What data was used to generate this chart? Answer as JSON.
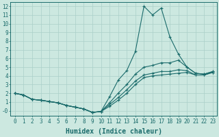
{
  "bg_color": "#cce8e0",
  "line_color": "#1a6b6b",
  "grid_color": "#aacfc8",
  "xlim": [
    -0.5,
    23.5
  ],
  "ylim": [
    -0.6,
    12.5
  ],
  "xticks": [
    0,
    1,
    2,
    3,
    4,
    5,
    6,
    7,
    8,
    9,
    10,
    11,
    12,
    13,
    14,
    15,
    16,
    17,
    18,
    19,
    20,
    21,
    22,
    23
  ],
  "yticks": [
    0,
    1,
    2,
    3,
    4,
    5,
    6,
    7,
    8,
    9,
    10,
    11,
    12
  ],
  "ytick_labels": [
    "-0",
    "1",
    "2",
    "3",
    "4",
    "5",
    "6",
    "7",
    "8",
    "9",
    "10",
    "11",
    "12"
  ],
  "xlabel": "Humidex (Indice chaleur)",
  "tick_fontsize": 5.5,
  "label_fontsize": 7,
  "line1_x": [
    0,
    1,
    2,
    3,
    4,
    5,
    6,
    7,
    8,
    9,
    10,
    11,
    12,
    13,
    14,
    15,
    16,
    17,
    18,
    19,
    20,
    21,
    22,
    23
  ],
  "line1_y": [
    2.0,
    1.8,
    1.3,
    1.2,
    1.05,
    0.9,
    0.6,
    0.4,
    0.2,
    -0.2,
    -0.1,
    1.6,
    3.5,
    4.6,
    6.8,
    12.0,
    11.0,
    11.8,
    8.5,
    6.5,
    5.0,
    4.3,
    4.2,
    4.5
  ],
  "line2_x": [
    0,
    1,
    2,
    3,
    4,
    5,
    6,
    7,
    8,
    9,
    10,
    11,
    12,
    13,
    14,
    15,
    16,
    17,
    18,
    19,
    20,
    21,
    22,
    23
  ],
  "line2_y": [
    2.0,
    1.8,
    1.3,
    1.2,
    1.05,
    0.9,
    0.6,
    0.4,
    0.2,
    -0.2,
    -0.1,
    0.5,
    1.2,
    2.0,
    3.0,
    3.8,
    4.0,
    4.1,
    4.2,
    4.3,
    4.4,
    4.1,
    4.1,
    4.4
  ],
  "line3_x": [
    0,
    1,
    2,
    3,
    4,
    5,
    6,
    7,
    8,
    9,
    10,
    11,
    12,
    13,
    14,
    15,
    16,
    17,
    18,
    19,
    20,
    21,
    22,
    23
  ],
  "line3_y": [
    2.0,
    1.8,
    1.3,
    1.2,
    1.05,
    0.9,
    0.6,
    0.4,
    0.2,
    -0.2,
    -0.1,
    0.7,
    1.5,
    2.4,
    3.4,
    4.1,
    4.3,
    4.5,
    4.5,
    4.7,
    4.6,
    4.1,
    4.1,
    4.4
  ],
  "line4_x": [
    0,
    1,
    2,
    3,
    4,
    5,
    6,
    7,
    8,
    9,
    10,
    11,
    12,
    13,
    14,
    15,
    16,
    17,
    18,
    19,
    20,
    21,
    22,
    23
  ],
  "line4_y": [
    2.0,
    1.8,
    1.3,
    1.2,
    1.05,
    0.9,
    0.6,
    0.4,
    0.2,
    -0.2,
    -0.1,
    0.9,
    2.0,
    3.0,
    4.2,
    5.0,
    5.2,
    5.5,
    5.5,
    5.8,
    5.0,
    4.3,
    4.2,
    4.5
  ]
}
